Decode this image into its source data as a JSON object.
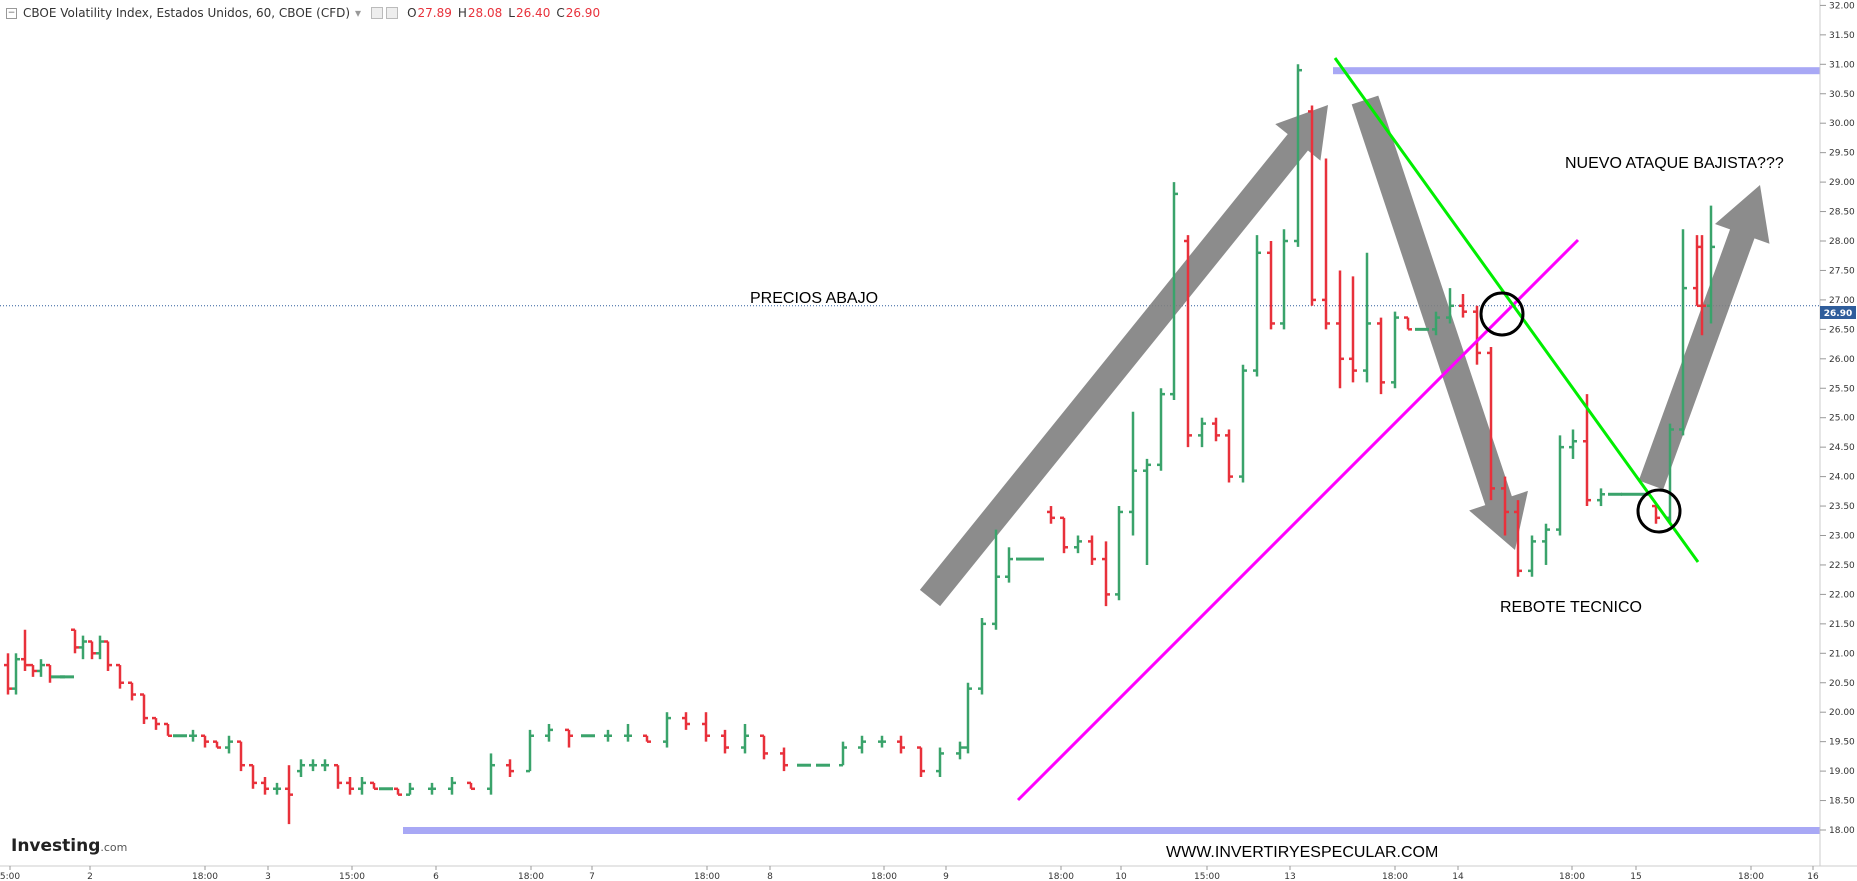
{
  "header": {
    "title": "CBOE Volatility Index, Estados Unidos, 60, CBOE (CFD)",
    "open_label": "O",
    "open": "27.89",
    "high_label": "H",
    "high": "28.08",
    "low_label": "L",
    "low": "26.40",
    "close_label": "C",
    "close": "26.90"
  },
  "logo": {
    "brand": "Investing",
    "suffix": ".com"
  },
  "chart_data": {
    "type": "candlestick",
    "title": "CBOE Volatility Index, Estados Unidos, 60, CBOE (CFD)",
    "ylim": [
      17.9,
      32.1
    ],
    "y_ticks": [
      "18.00",
      "18.50",
      "19.00",
      "19.50",
      "20.00",
      "20.50",
      "21.00",
      "21.50",
      "22.00",
      "22.50",
      "23.00",
      "23.50",
      "24.00",
      "24.50",
      "25.00",
      "25.50",
      "26.00",
      "26.50",
      "27.00",
      "27.50",
      "28.00",
      "28.50",
      "29.00",
      "29.50",
      "30.00",
      "30.50",
      "31.00",
      "31.50",
      "32.00"
    ],
    "x_ticks": [
      "5:00",
      "2",
      "18:00",
      "3",
      "15:00",
      "6",
      "18:00",
      "7",
      "18:00",
      "8",
      "18:00",
      "9",
      "18:00",
      "10",
      "15:00",
      "13",
      "18:00",
      "14",
      "18:00",
      "15",
      "18:00",
      "16"
    ],
    "last_price": 26.9,
    "last_price_label": "26.90",
    "support_level": 18.0,
    "resistance_level": 30.9,
    "up_color": "#3aa36b",
    "down_color": "#e8313b",
    "candles": [
      [
        20.8,
        21.0,
        20.3,
        20.4
      ],
      [
        20.4,
        21.0,
        20.3,
        20.9
      ],
      [
        20.9,
        21.4,
        20.7,
        20.8
      ],
      [
        20.8,
        20.8,
        20.6,
        20.7
      ],
      [
        20.7,
        20.9,
        20.6,
        20.8
      ],
      [
        20.8,
        20.8,
        20.5,
        20.6
      ],
      [
        20.6,
        20.6,
        20.6,
        20.6
      ],
      [
        20.6,
        20.6,
        20.6,
        20.6
      ],
      [
        21.4,
        21.4,
        21.0,
        21.1
      ],
      [
        21.1,
        21.3,
        20.9,
        21.2
      ],
      [
        21.2,
        21.2,
        20.9,
        21.0
      ],
      [
        21.0,
        21.3,
        20.9,
        21.2
      ],
      [
        21.2,
        21.2,
        20.7,
        20.8
      ],
      [
        20.8,
        20.8,
        20.4,
        20.5
      ],
      [
        20.5,
        20.5,
        20.2,
        20.3
      ],
      [
        20.3,
        20.3,
        19.8,
        19.9
      ],
      [
        19.9,
        19.9,
        19.7,
        19.8
      ],
      [
        19.8,
        19.8,
        19.6,
        19.6
      ],
      [
        19.6,
        19.6,
        19.6,
        19.6
      ],
      [
        19.6,
        19.7,
        19.5,
        19.6
      ],
      [
        19.6,
        19.6,
        19.4,
        19.5
      ],
      [
        19.5,
        19.5,
        19.4,
        19.4
      ],
      [
        19.4,
        19.6,
        19.3,
        19.5
      ],
      [
        19.5,
        19.5,
        19.0,
        19.1
      ],
      [
        19.1,
        19.1,
        18.7,
        18.8
      ],
      [
        18.8,
        18.9,
        18.6,
        18.7
      ],
      [
        18.7,
        18.8,
        18.6,
        18.7
      ],
      [
        18.7,
        19.1,
        18.1,
        18.6
      ],
      [
        19.0,
        19.2,
        18.9,
        19.1
      ],
      [
        19.1,
        19.2,
        19.0,
        19.1
      ],
      [
        19.1,
        19.2,
        19.0,
        19.1
      ],
      [
        19.1,
        19.1,
        18.7,
        18.8
      ],
      [
        18.8,
        18.9,
        18.6,
        18.7
      ],
      [
        18.7,
        18.9,
        18.6,
        18.8
      ],
      [
        18.8,
        18.8,
        18.7,
        18.7
      ],
      [
        18.7,
        18.7,
        18.7,
        18.7
      ],
      [
        18.7,
        18.7,
        18.6,
        18.6
      ],
      [
        18.6,
        18.8,
        18.6,
        18.7
      ],
      [
        18.7,
        18.8,
        18.6,
        18.7
      ],
      [
        18.7,
        18.9,
        18.6,
        18.8
      ],
      [
        18.8,
        18.8,
        18.7,
        18.7
      ],
      [
        18.7,
        19.3,
        18.6,
        19.1
      ],
      [
        19.1,
        19.2,
        18.9,
        19.0
      ],
      [
        19.0,
        19.7,
        19.0,
        19.6
      ],
      [
        19.6,
        19.8,
        19.5,
        19.7
      ],
      [
        19.7,
        19.7,
        19.4,
        19.6
      ],
      [
        19.6,
        19.6,
        19.6,
        19.6
      ],
      [
        19.6,
        19.7,
        19.5,
        19.6
      ],
      [
        19.6,
        19.8,
        19.5,
        19.6
      ],
      [
        19.6,
        19.6,
        19.5,
        19.5
      ],
      [
        19.5,
        20.0,
        19.4,
        19.9
      ],
      [
        19.9,
        20.0,
        19.7,
        19.8
      ],
      [
        19.8,
        20.0,
        19.5,
        19.6
      ],
      [
        19.6,
        19.7,
        19.3,
        19.4
      ],
      [
        19.4,
        19.8,
        19.3,
        19.6
      ],
      [
        19.6,
        19.6,
        19.2,
        19.3
      ],
      [
        19.3,
        19.4,
        19.0,
        19.1
      ],
      [
        19.1,
        19.1,
        19.1,
        19.1
      ],
      [
        19.1,
        19.1,
        19.1,
        19.1
      ],
      [
        19.1,
        19.5,
        19.1,
        19.4
      ],
      [
        19.4,
        19.6,
        19.3,
        19.5
      ],
      [
        19.5,
        19.6,
        19.4,
        19.5
      ],
      [
        19.5,
        19.6,
        19.3,
        19.4
      ],
      [
        19.4,
        19.4,
        18.9,
        19.0
      ],
      [
        19.0,
        19.4,
        18.9,
        19.3
      ],
      [
        19.3,
        19.5,
        19.2,
        19.4
      ],
      [
        19.4,
        20.5,
        19.3,
        20.4
      ],
      [
        20.4,
        21.6,
        20.3,
        21.5
      ],
      [
        21.5,
        23.1,
        21.4,
        22.3
      ],
      [
        22.3,
        22.8,
        22.2,
        22.6
      ],
      [
        22.6,
        22.6,
        22.6,
        22.6
      ],
      [
        22.6,
        22.6,
        22.6,
        22.6
      ],
      [
        23.4,
        23.5,
        23.2,
        23.3
      ],
      [
        23.3,
        23.3,
        22.7,
        22.8
      ],
      [
        22.8,
        23.0,
        22.7,
        22.9
      ],
      [
        22.9,
        23.0,
        22.5,
        22.6
      ],
      [
        22.6,
        22.9,
        21.8,
        22.0
      ],
      [
        22.0,
        23.5,
        21.9,
        23.4
      ],
      [
        23.4,
        25.1,
        23.0,
        24.1
      ],
      [
        24.1,
        24.3,
        22.5,
        24.2
      ],
      [
        24.2,
        25.5,
        24.1,
        25.4
      ],
      [
        25.4,
        29.0,
        25.3,
        28.8
      ],
      [
        28.0,
        28.1,
        24.5,
        24.7
      ],
      [
        24.7,
        25.0,
        24.5,
        24.9
      ],
      [
        24.9,
        25.0,
        24.6,
        24.7
      ],
      [
        24.7,
        24.8,
        23.9,
        24.0
      ],
      [
        24.0,
        25.9,
        23.9,
        25.8
      ],
      [
        25.8,
        28.1,
        25.7,
        27.8
      ],
      [
        27.8,
        28.0,
        26.5,
        26.6
      ],
      [
        26.6,
        28.2,
        26.5,
        28.0
      ],
      [
        28.0,
        31.0,
        27.9,
        30.9
      ],
      [
        30.2,
        30.3,
        26.9,
        27.0
      ],
      [
        27.0,
        29.4,
        26.5,
        26.6
      ],
      [
        26.6,
        27.5,
        25.5,
        26.0
      ],
      [
        26.0,
        27.4,
        25.6,
        25.8
      ],
      [
        25.8,
        27.8,
        25.6,
        26.6
      ],
      [
        26.6,
        26.7,
        25.4,
        25.6
      ],
      [
        25.6,
        26.8,
        25.5,
        26.7
      ],
      [
        26.7,
        26.7,
        26.5,
        26.5
      ],
      [
        26.5,
        26.5,
        26.5,
        26.5
      ],
      [
        26.5,
        26.8,
        26.4,
        26.7
      ],
      [
        26.7,
        27.2,
        26.6,
        26.9
      ],
      [
        26.9,
        27.1,
        26.7,
        26.8
      ],
      [
        26.8,
        26.9,
        25.9,
        26.1
      ],
      [
        26.1,
        26.2,
        23.6,
        23.8
      ],
      [
        23.8,
        24.0,
        23.0,
        23.4
      ],
      [
        23.4,
        23.6,
        22.3,
        22.4
      ],
      [
        22.4,
        23.0,
        22.3,
        22.9
      ],
      [
        22.9,
        23.2,
        22.5,
        23.1
      ],
      [
        23.1,
        24.7,
        23.0,
        24.5
      ],
      [
        24.5,
        24.8,
        24.3,
        24.6
      ],
      [
        24.6,
        25.4,
        23.5,
        23.6
      ],
      [
        23.6,
        23.8,
        23.5,
        23.7
      ],
      [
        23.7,
        23.7,
        23.7,
        23.7
      ],
      [
        23.7,
        23.7,
        23.7,
        23.7
      ],
      [
        23.7,
        23.7,
        23.7,
        23.7
      ],
      [
        23.5,
        23.5,
        23.2,
        23.3
      ],
      [
        23.3,
        24.9,
        23.2,
        24.8
      ],
      [
        24.8,
        28.2,
        24.7,
        27.2
      ],
      [
        27.2,
        28.1,
        26.9,
        26.9
      ],
      [
        26.9,
        28.6,
        26.6,
        27.9
      ],
      [
        27.9,
        28.1,
        26.4,
        26.9
      ]
    ]
  },
  "annotations": {
    "precios_abajo": "PRECIOS ABAJO",
    "rebote": "REBOTE TECNICO",
    "nuevo_ataque": "NUEVO ATAQUE BAJISTA???",
    "website": "WWW.INVERTIRYESPECULAR.COM"
  }
}
